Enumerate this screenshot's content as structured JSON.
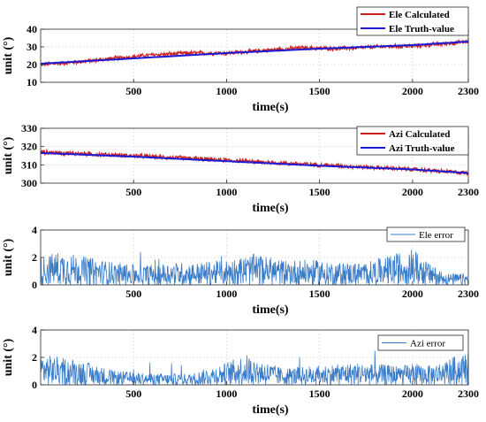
{
  "chart_data": [
    {
      "type": "line",
      "xlabel": "time(s)",
      "ylabel": "unit (°)",
      "xlim": [
        0,
        2300
      ],
      "ylim": [
        10,
        40
      ],
      "xticks": [
        500,
        1000,
        1500,
        2000,
        2300
      ],
      "yticks": [
        10,
        20,
        30,
        40
      ],
      "grid": true,
      "legend_position": "top-right",
      "series": [
        {
          "name": "Ele Calculated",
          "color": "#cc1f1f",
          "style": "noisy",
          "x": [
            0,
            200,
            400,
            600,
            800,
            1000,
            1200,
            1400,
            1600,
            1800,
            2000,
            2200,
            2300
          ],
          "values": [
            20,
            21.5,
            23.5,
            25.5,
            26.5,
            26.5,
            28,
            29.5,
            29,
            30,
            30.5,
            32,
            33
          ]
        },
        {
          "name": "Ele Truth-value",
          "color": "#1a1ad6",
          "style": "smooth",
          "x": [
            0,
            500,
            1000,
            1500,
            2000,
            2300
          ],
          "values": [
            20.5,
            23.5,
            26.5,
            29,
            31,
            33
          ]
        }
      ]
    },
    {
      "type": "line",
      "xlabel": "time(s)",
      "ylabel": "unit (°)",
      "xlim": [
        0,
        2300
      ],
      "ylim": [
        300,
        330
      ],
      "xticks": [
        500,
        1000,
        1500,
        2000,
        2300
      ],
      "yticks": [
        300,
        310,
        320,
        330
      ],
      "grid": true,
      "legend_position": "top-right",
      "series": [
        {
          "name": "Azi Calculated",
          "color": "#cc1f1f",
          "style": "noisy",
          "x": [
            0,
            500,
            1000,
            1500,
            2000,
            2300
          ],
          "values": [
            317,
            315,
            312.5,
            310,
            307.5,
            305.5
          ]
        },
        {
          "name": "Azi Truth-value",
          "color": "#1a1ad6",
          "style": "smooth",
          "x": [
            0,
            500,
            1000,
            1500,
            2000,
            2300
          ],
          "values": [
            316.5,
            314.5,
            312,
            309.5,
            307.5,
            305.5
          ]
        }
      ]
    },
    {
      "type": "line",
      "xlabel": "time(s)",
      "ylabel": "unit (°)",
      "xlim": [
        0,
        2300
      ],
      "ylim": [
        0,
        4
      ],
      "xticks": [
        500,
        1000,
        1500,
        2000,
        2300
      ],
      "yticks": [
        0,
        2,
        4
      ],
      "grid": true,
      "legend_position": "top-right",
      "series": [
        {
          "name": "Ele error",
          "color": "#3a7cc8",
          "style": "error",
          "x": [
            0,
            100,
            250,
            400,
            550,
            700,
            850,
            1000,
            1150,
            1300,
            1450,
            1600,
            1750,
            1900,
            2000,
            2100,
            2200,
            2300
          ],
          "values": [
            1.0,
            1.2,
            1.0,
            0.8,
            0.7,
            0.8,
            0.8,
            0.9,
            1.1,
            0.9,
            0.9,
            0.8,
            0.8,
            1.1,
            1.3,
            0.7,
            0.4,
            0.4
          ]
        }
      ]
    },
    {
      "type": "line",
      "xlabel": "time(s)",
      "ylabel": "unit (°)",
      "xlim": [
        0,
        2300
      ],
      "ylim": [
        0,
        4
      ],
      "xticks": [
        500,
        1000,
        1500,
        2000,
        2300
      ],
      "yticks": [
        0,
        2,
        4
      ],
      "grid": true,
      "legend_position": "top-right",
      "series": [
        {
          "name": "Azi error",
          "color": "#3a7cc8",
          "style": "error",
          "x": [
            0,
            200,
            400,
            600,
            800,
            1000,
            1100,
            1300,
            1500,
            1700,
            1900,
            2100,
            2300
          ],
          "values": [
            1.1,
            0.9,
            0.5,
            0.4,
            0.4,
            0.8,
            1.1,
            0.6,
            0.7,
            0.8,
            0.7,
            0.7,
            1.2
          ]
        }
      ]
    }
  ]
}
